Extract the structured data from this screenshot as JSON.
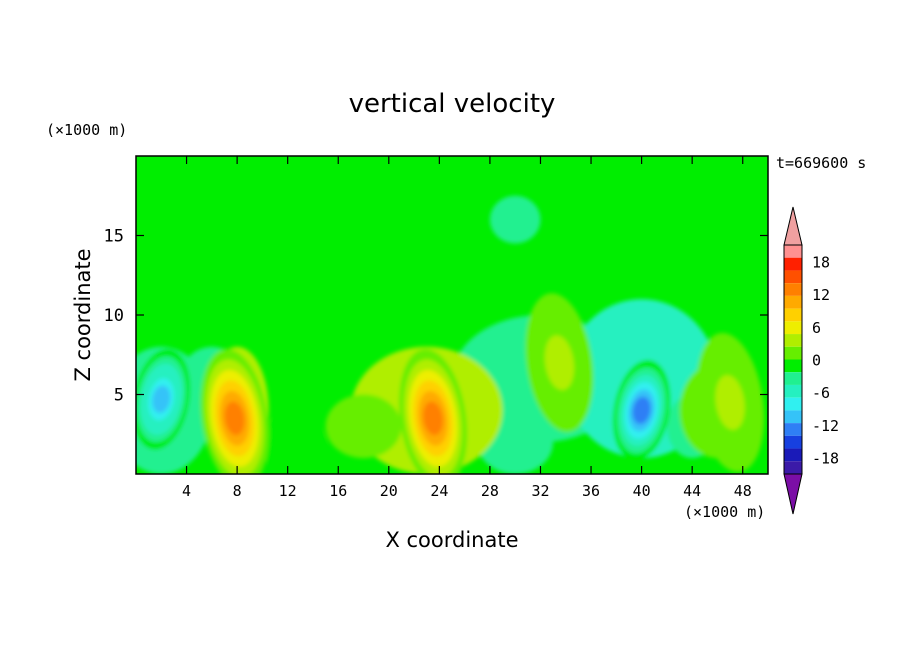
{
  "chart_data": {
    "type": "heatmap",
    "title": "vertical velocity",
    "xlabel": "X coordinate",
    "ylabel": "Z coordinate",
    "x_unit": "(×1000 m)",
    "y_unit": "(×1000 m)",
    "time_label": "t=669600 s",
    "xlim": [
      0,
      50
    ],
    "ylim": [
      0,
      20
    ],
    "x_ticks": [
      4,
      8,
      12,
      16,
      20,
      24,
      28,
      32,
      36,
      40,
      44,
      48
    ],
    "y_ticks": [
      5,
      10,
      15
    ],
    "colorbar": {
      "ticks": [
        18,
        12,
        6,
        0,
        -6,
        -12,
        -18
      ],
      "range": [
        -21,
        21
      ],
      "extend": "both",
      "colors": [
        "#7b0ea6",
        "#3b1aa8",
        "#1a1ab8",
        "#1740e0",
        "#2f7ff5",
        "#35c3f8",
        "#30f0f0",
        "#25f0c0",
        "#20f090",
        "#00ee00",
        "#66ee00",
        "#b0ee00",
        "#eeee00",
        "#ffd000",
        "#ffaa00",
        "#ff8000",
        "#ff5000",
        "#ff2000",
        "#ff9090",
        "#f0a0a0"
      ]
    },
    "features": [
      {
        "name": "updraft",
        "x": 7.8,
        "z": 3.5,
        "peak": 12
      },
      {
        "name": "updraft",
        "x": 23.5,
        "z": 3.5,
        "peak": 13
      },
      {
        "name": "downdraft",
        "x": 2.0,
        "z": 4.7,
        "peak": -10
      },
      {
        "name": "downdraft",
        "x": 40.0,
        "z": 4.0,
        "peak": -12
      },
      {
        "name": "weak updraft",
        "x": 33.5,
        "z": 7.0,
        "peak": 3
      },
      {
        "name": "weak updraft",
        "x": 47.0,
        "z": 4.5,
        "peak": 3
      }
    ]
  }
}
